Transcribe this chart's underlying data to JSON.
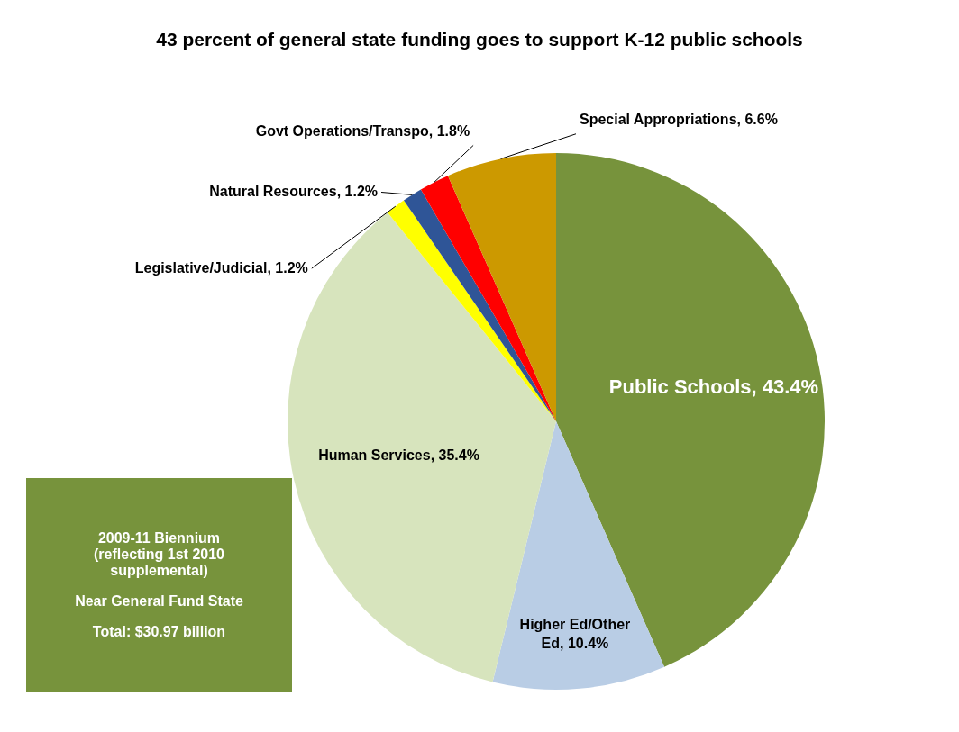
{
  "chart_data": {
    "type": "pie",
    "title": "43 percent of general state funding goes to support K-12 public schools",
    "categories": [
      "Public Schools",
      "Higher Ed/Other Ed",
      "Human Services",
      "Legislative/Judicial",
      "Natural Resources",
      "Govt Operations/Transpo",
      "Special Appropriations"
    ],
    "value_labels": [
      "43.4%",
      "10.4%",
      "35.4%",
      "1.2%",
      "1.2%",
      "1.8%",
      "6.6%"
    ],
    "values": [
      43.4,
      10.4,
      35.4,
      1.2,
      1.2,
      1.8,
      6.6
    ],
    "colors": [
      "#77933c",
      "#b9cde5",
      "#d7e4bd",
      "#ffff00",
      "#2f5597",
      "#ff0000",
      "#cc9900"
    ],
    "legend": false,
    "annotations": [
      "2009-11 Biennium (reflecting 1st 2010 supplemental)",
      "Near General Fund State",
      "Total:  $30.97 billion"
    ]
  }
}
